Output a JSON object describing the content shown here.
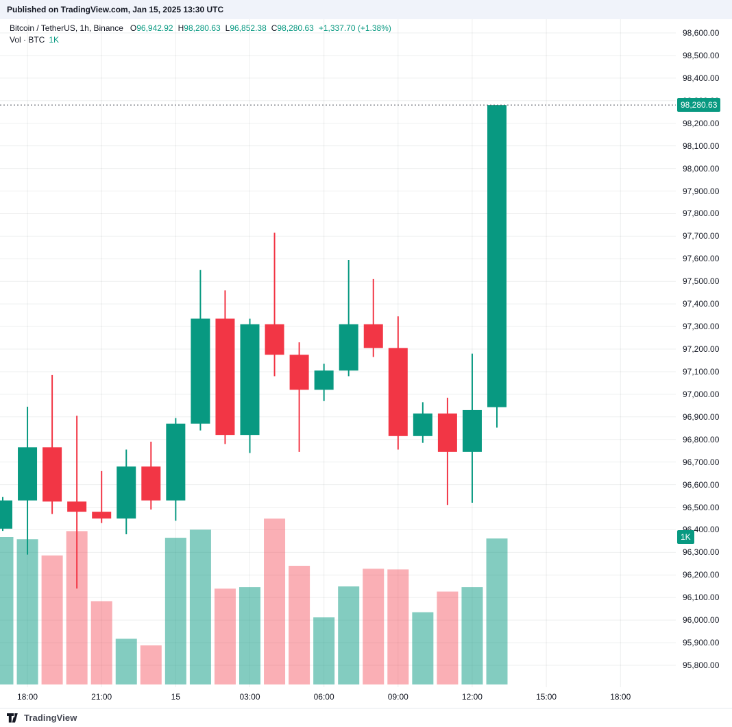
{
  "published_bar": "Published on TradingView.com, Jan 15, 2025 13:30 UTC",
  "legend": {
    "symbol": "Bitcoin / TetherUS, 1h, Binance",
    "ohlc": [
      {
        "label": "O",
        "value": "96,942.92"
      },
      {
        "label": "H",
        "value": "98,280.63"
      },
      {
        "label": "L",
        "value": "96,852.38"
      },
      {
        "label": "C",
        "value": "98,280.63"
      }
    ],
    "change": "+1,337.70 (+1.38%)",
    "volume_row": {
      "label": "Vol · BTC",
      "value": "1K"
    }
  },
  "axis_chips": {
    "price": "98,280.63",
    "volume": "1K"
  },
  "footer": {
    "brand": "TradingView"
  },
  "colors": {
    "up": "#089981",
    "down": "#f23645",
    "vol_up": "rgba(8,153,129,0.5)",
    "vol_down": "rgba(242,54,69,0.4)",
    "grid": "rgba(42,46,57,0.08)",
    "price_line": "#50535e",
    "chip_bg": "#089981"
  },
  "chart_data": {
    "type": "candlestick",
    "title": "Bitcoin / TetherUS, 1h, Binance",
    "symbol": "BTC/USDT",
    "interval": "1h",
    "exchange": "Binance",
    "legend_ohlc": {
      "open": 96942.92,
      "high": 98280.63,
      "low": 96852.38,
      "close": 98280.63,
      "change": 1337.7,
      "change_pct": 1.38
    },
    "price_axis": {
      "max": 98600,
      "min": 95800,
      "tick_step": 100
    },
    "volume_axis": {
      "tick_value": 1000,
      "tick_label": "1K",
      "unit": "BTC"
    },
    "price_line": 98280.63,
    "time_ticks": [
      {
        "label": "18:00",
        "candle_index": 1
      },
      {
        "label": "21:00",
        "candle_index": 4
      },
      {
        "label": "15",
        "candle_index": 7
      },
      {
        "label": "03:00",
        "candle_index": 10
      },
      {
        "label": "06:00",
        "candle_index": 13
      },
      {
        "label": "09:00",
        "candle_index": 16
      },
      {
        "label": "12:00",
        "candle_index": 19
      },
      {
        "label": "15:00",
        "candle_index": 22
      },
      {
        "label": "18:00",
        "candle_index": 25
      }
    ],
    "candles": [
      {
        "time": "17:00",
        "open": 96405,
        "high": 96545,
        "low": 96395,
        "close": 96530,
        "volume": 1000,
        "partial": true
      },
      {
        "time": "18:00",
        "open": 96530,
        "high": 96945,
        "low": 96290,
        "close": 96765,
        "volume": 985
      },
      {
        "time": "19:00",
        "open": 96765,
        "high": 97085,
        "low": 96470,
        "close": 96525,
        "volume": 875
      },
      {
        "time": "20:00",
        "open": 96525,
        "high": 96905,
        "low": 96140,
        "close": 96480,
        "volume": 1040
      },
      {
        "time": "21:00",
        "open": 96480,
        "high": 96660,
        "low": 96430,
        "close": 96450,
        "volume": 565
      },
      {
        "time": "22:00",
        "open": 96450,
        "high": 96755,
        "low": 96380,
        "close": 96680,
        "volume": 310
      },
      {
        "time": "23:00",
        "open": 96680,
        "high": 96790,
        "low": 96490,
        "close": 96530,
        "volume": 265
      },
      {
        "time": "00:00",
        "open": 96530,
        "high": 96895,
        "low": 96440,
        "close": 96870,
        "volume": 995
      },
      {
        "time": "01:00",
        "open": 96870,
        "high": 97550,
        "low": 96840,
        "close": 97335,
        "volume": 1050
      },
      {
        "time": "02:00",
        "open": 97335,
        "high": 97460,
        "low": 96780,
        "close": 96820,
        "volume": 650
      },
      {
        "time": "03:00",
        "open": 96820,
        "high": 97335,
        "low": 96740,
        "close": 97310,
        "volume": 660
      },
      {
        "time": "04:00",
        "open": 97310,
        "high": 97715,
        "low": 97080,
        "close": 97175,
        "volume": 1125
      },
      {
        "time": "05:00",
        "open": 97175,
        "high": 97230,
        "low": 96745,
        "close": 97020,
        "volume": 805
      },
      {
        "time": "06:00",
        "open": 97020,
        "high": 97135,
        "low": 96970,
        "close": 97105,
        "volume": 455
      },
      {
        "time": "07:00",
        "open": 97105,
        "high": 97595,
        "low": 97080,
        "close": 97310,
        "volume": 665
      },
      {
        "time": "08:00",
        "open": 97310,
        "high": 97510,
        "low": 97165,
        "close": 97205,
        "volume": 785
      },
      {
        "time": "09:00",
        "open": 97205,
        "high": 97345,
        "low": 96755,
        "close": 96815,
        "volume": 780
      },
      {
        "time": "10:00",
        "open": 96815,
        "high": 96965,
        "low": 96785,
        "close": 96915,
        "volume": 490
      },
      {
        "time": "11:00",
        "open": 96915,
        "high": 96985,
        "low": 96510,
        "close": 96745,
        "volume": 630
      },
      {
        "time": "12:00",
        "open": 96745,
        "high": 97180,
        "low": 96520,
        "close": 96930,
        "volume": 660
      },
      {
        "time": "13:00",
        "open": 96942.92,
        "high": 98280.63,
        "low": 96852.38,
        "close": 98280.63,
        "volume": 990
      }
    ]
  }
}
